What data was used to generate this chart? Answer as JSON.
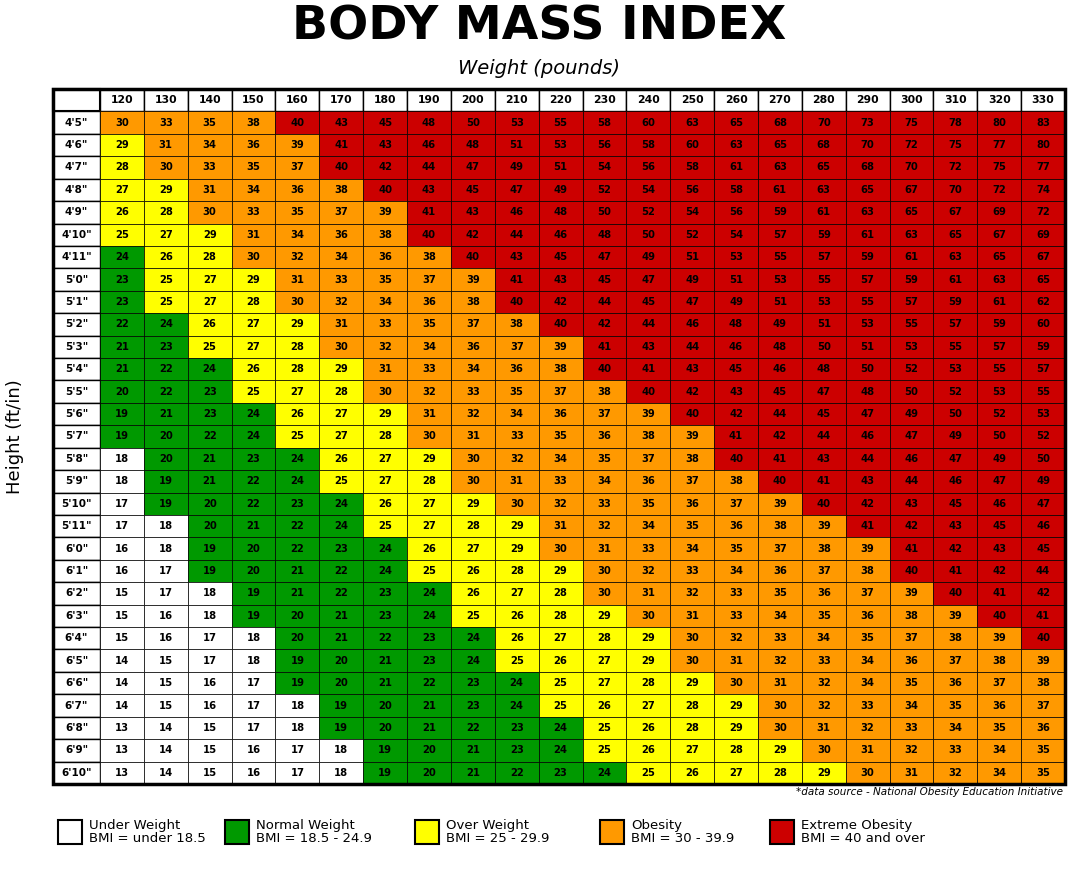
{
  "title": "BODY MASS INDEX",
  "subtitle": "Weight (pounds)",
  "ylabel": "Height (ft/in)",
  "weights": [
    120,
    130,
    140,
    150,
    160,
    170,
    180,
    190,
    200,
    210,
    220,
    230,
    240,
    250,
    260,
    270,
    280,
    290,
    300,
    310,
    320,
    330
  ],
  "heights": [
    "4'5\"",
    "4'6\"",
    "4'7\"",
    "4'8\"",
    "4'9\"",
    "4'10\"",
    "4'11\"",
    "5'0\"",
    "5'1\"",
    "5'2\"",
    "5'3\"",
    "5'4\"",
    "5'5\"",
    "5'6\"",
    "5'7\"",
    "5'8\"",
    "5'9\"",
    "5'10\"",
    "5'11\"",
    "6'0\"",
    "6'1\"",
    "6'2\"",
    "6'3\"",
    "6'4\"",
    "6'5\"",
    "6'6\"",
    "6'7\"",
    "6'8\"",
    "6'9\"",
    "6'10\""
  ],
  "bmi_data": [
    [
      30,
      33,
      35,
      38,
      40,
      43,
      45,
      48,
      50,
      53,
      55,
      58,
      60,
      63,
      65,
      68,
      70,
      73,
      75,
      78,
      80,
      83
    ],
    [
      29,
      31,
      34,
      36,
      39,
      41,
      43,
      46,
      48,
      51,
      53,
      56,
      58,
      60,
      63,
      65,
      68,
      70,
      72,
      75,
      77,
      80
    ],
    [
      28,
      30,
      33,
      35,
      37,
      40,
      42,
      44,
      47,
      49,
      51,
      54,
      56,
      58,
      61,
      63,
      65,
      68,
      70,
      72,
      75,
      77
    ],
    [
      27,
      29,
      31,
      34,
      36,
      38,
      40,
      43,
      45,
      47,
      49,
      52,
      54,
      56,
      58,
      61,
      63,
      65,
      67,
      70,
      72,
      74
    ],
    [
      26,
      28,
      30,
      33,
      35,
      37,
      39,
      41,
      43,
      46,
      48,
      50,
      52,
      54,
      56,
      59,
      61,
      63,
      65,
      67,
      69,
      72
    ],
    [
      25,
      27,
      29,
      31,
      34,
      36,
      38,
      40,
      42,
      44,
      46,
      48,
      50,
      52,
      54,
      57,
      59,
      61,
      63,
      65,
      67,
      69
    ],
    [
      24,
      26,
      28,
      30,
      32,
      34,
      36,
      38,
      40,
      43,
      45,
      47,
      49,
      51,
      53,
      55,
      57,
      59,
      61,
      63,
      65,
      67
    ],
    [
      23,
      25,
      27,
      29,
      31,
      33,
      35,
      37,
      39,
      41,
      43,
      45,
      47,
      49,
      51,
      53,
      55,
      57,
      59,
      61,
      63,
      65
    ],
    [
      23,
      25,
      27,
      28,
      30,
      32,
      34,
      36,
      38,
      40,
      42,
      44,
      45,
      47,
      49,
      51,
      53,
      55,
      57,
      59,
      61,
      62
    ],
    [
      22,
      24,
      26,
      27,
      29,
      31,
      33,
      35,
      37,
      38,
      40,
      42,
      44,
      46,
      48,
      49,
      51,
      53,
      55,
      57,
      59,
      60
    ],
    [
      21,
      23,
      25,
      27,
      28,
      30,
      32,
      34,
      36,
      37,
      39,
      41,
      43,
      44,
      46,
      48,
      50,
      51,
      53,
      55,
      57,
      59
    ],
    [
      21,
      22,
      24,
      26,
      28,
      29,
      31,
      33,
      34,
      36,
      38,
      40,
      41,
      43,
      45,
      46,
      48,
      50,
      52,
      53,
      55,
      57
    ],
    [
      20,
      22,
      23,
      25,
      27,
      28,
      30,
      32,
      33,
      35,
      37,
      38,
      40,
      42,
      43,
      45,
      47,
      48,
      50,
      52,
      53,
      55
    ],
    [
      19,
      21,
      23,
      24,
      26,
      27,
      29,
      31,
      32,
      34,
      36,
      37,
      39,
      40,
      42,
      44,
      45,
      47,
      49,
      50,
      52,
      53
    ],
    [
      19,
      20,
      22,
      24,
      25,
      27,
      28,
      30,
      31,
      33,
      35,
      36,
      38,
      39,
      41,
      42,
      44,
      46,
      47,
      49,
      50,
      52
    ],
    [
      18,
      20,
      21,
      23,
      24,
      26,
      27,
      29,
      30,
      32,
      34,
      35,
      37,
      38,
      40,
      41,
      43,
      44,
      46,
      47,
      49,
      50
    ],
    [
      18,
      19,
      21,
      22,
      24,
      25,
      27,
      28,
      30,
      31,
      33,
      34,
      36,
      37,
      38,
      40,
      41,
      43,
      44,
      46,
      47,
      49
    ],
    [
      17,
      19,
      20,
      22,
      23,
      24,
      26,
      27,
      29,
      30,
      32,
      33,
      35,
      36,
      37,
      39,
      40,
      42,
      43,
      45,
      46,
      47
    ],
    [
      17,
      18,
      20,
      21,
      22,
      24,
      25,
      27,
      28,
      29,
      31,
      32,
      34,
      35,
      36,
      38,
      39,
      41,
      42,
      43,
      45,
      46
    ],
    [
      16,
      18,
      19,
      20,
      22,
      23,
      24,
      26,
      27,
      29,
      30,
      31,
      33,
      34,
      35,
      37,
      38,
      39,
      41,
      42,
      43,
      45
    ],
    [
      16,
      17,
      19,
      20,
      21,
      22,
      24,
      25,
      26,
      28,
      29,
      30,
      32,
      33,
      34,
      36,
      37,
      38,
      40,
      41,
      42,
      44
    ],
    [
      15,
      17,
      18,
      19,
      21,
      22,
      23,
      24,
      26,
      27,
      28,
      30,
      31,
      32,
      33,
      35,
      36,
      37,
      39,
      40,
      41,
      42
    ],
    [
      15,
      16,
      18,
      19,
      20,
      21,
      23,
      24,
      25,
      26,
      28,
      29,
      30,
      31,
      33,
      34,
      35,
      36,
      38,
      39,
      40,
      41
    ],
    [
      15,
      16,
      17,
      18,
      20,
      21,
      22,
      23,
      24,
      26,
      27,
      28,
      29,
      30,
      32,
      33,
      34,
      35,
      37,
      38,
      39,
      40
    ],
    [
      14,
      15,
      17,
      18,
      19,
      20,
      21,
      23,
      24,
      25,
      26,
      27,
      29,
      30,
      31,
      32,
      33,
      34,
      36,
      37,
      38,
      39
    ],
    [
      14,
      15,
      16,
      17,
      19,
      20,
      21,
      22,
      23,
      24,
      25,
      27,
      28,
      29,
      30,
      31,
      32,
      34,
      35,
      36,
      37,
      38
    ],
    [
      14,
      15,
      16,
      17,
      18,
      19,
      20,
      21,
      23,
      24,
      25,
      26,
      27,
      28,
      29,
      30,
      32,
      33,
      34,
      35,
      36,
      37
    ],
    [
      13,
      14,
      15,
      17,
      18,
      19,
      20,
      21,
      22,
      23,
      24,
      25,
      26,
      28,
      29,
      30,
      31,
      32,
      33,
      34,
      35,
      36
    ],
    [
      13,
      14,
      15,
      16,
      17,
      18,
      19,
      20,
      21,
      23,
      24,
      25,
      26,
      27,
      28,
      29,
      30,
      31,
      32,
      33,
      34,
      35
    ],
    [
      13,
      14,
      15,
      16,
      17,
      18,
      19,
      20,
      21,
      22,
      23,
      24,
      25,
      26,
      27,
      28,
      29,
      30,
      31,
      32,
      34,
      35
    ]
  ],
  "colors": {
    "underweight": "#ffffff",
    "normal": "#009900",
    "overweight": "#ffff00",
    "obese": "#ff9900",
    "extreme": "#cc0000"
  },
  "bg_color": "#f0f0f0",
  "legend_items": [
    {
      "label": "Under Weight",
      "sublabel": "BMI = under 18.5",
      "color": "#ffffff"
    },
    {
      "label": "Normal Weight",
      "sublabel": "BMI = 18.5 - 24.9",
      "color": "#009900"
    },
    {
      "label": "Over Weight",
      "sublabel": "BMI = 25 - 29.9",
      "color": "#ffff00"
    },
    {
      "label": "Obesity",
      "sublabel": "BMI = 30 - 39.9",
      "color": "#ff9900"
    },
    {
      "label": "Extreme Obesity",
      "sublabel": "BMI = 40 and over",
      "color": "#cc0000"
    }
  ],
  "datasource": "*data source - National Obesity Education Initiative"
}
